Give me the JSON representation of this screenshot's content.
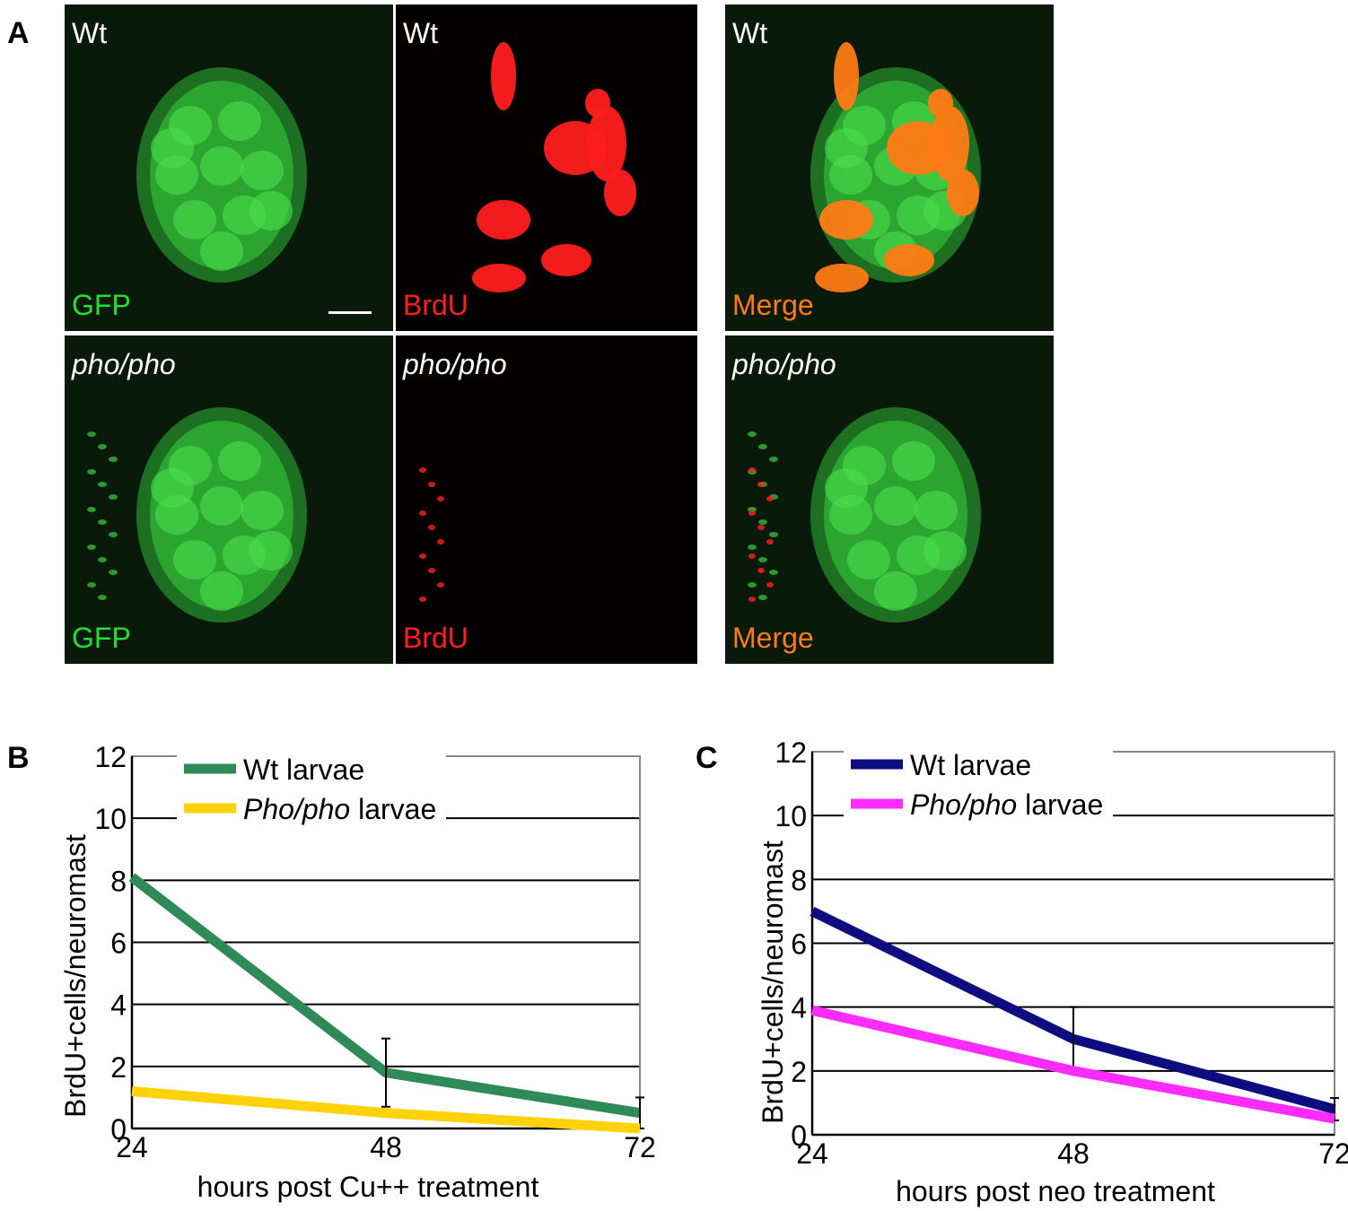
{
  "panel_a": {
    "letter": "A",
    "channel_colors": {
      "GFP": "#22e030",
      "BrdU": "#ff1e1e",
      "Merge": "#ff7a14"
    },
    "rows": [
      {
        "genotype": "Wt",
        "italic": false,
        "images": [
          {
            "label": "GFP",
            "channel": "GFP"
          },
          {
            "label": "BrdU",
            "channel": "BrdU"
          },
          {
            "label": "Merge",
            "channel": "Merge"
          }
        ]
      },
      {
        "genotype": "pho/pho",
        "italic": true,
        "images": [
          {
            "label": "GFP",
            "channel": "GFP"
          },
          {
            "label": "BrdU",
            "channel": "BrdU"
          },
          {
            "label": "Merge",
            "channel": "Merge"
          }
        ]
      }
    ]
  },
  "chart_data": [
    {
      "panel_letter": "B",
      "type": "line",
      "xlabel": "hours post Cu++ treatment",
      "ylabel": "BrdU+cells/neuromast",
      "x": [
        "24",
        "48",
        "72"
      ],
      "ylim": [
        0,
        12
      ],
      "yticks": [
        "0",
        "2",
        "4",
        "6",
        "8",
        "10",
        "12"
      ],
      "grid": true,
      "legend": "top-left",
      "series": [
        {
          "name_prefix": "",
          "name_italic": "",
          "name": "Wt larvae",
          "color": "#2e8b57",
          "values": [
            8.1,
            1.8,
            0.5
          ],
          "errors": [
            0,
            1.1,
            0.5
          ]
        },
        {
          "name_prefix": "",
          "name_italic": "Pho/pho",
          "name": " larvae",
          "color": "#ffd20a",
          "values": [
            1.2,
            0.5,
            0.0
          ],
          "errors": [
            0,
            0,
            0
          ]
        }
      ]
    },
    {
      "panel_letter": "C",
      "type": "line",
      "xlabel": "hours post neo treatment",
      "ylabel": "BrdU+cells/neuromast",
      "x": [
        "24",
        "48",
        "72"
      ],
      "ylim": [
        0,
        12
      ],
      "yticks": [
        "0",
        "2",
        "4",
        "6",
        "8",
        "10",
        "12"
      ],
      "grid": true,
      "legend": "top-left",
      "series": [
        {
          "name_prefix": "",
          "name_italic": "",
          "name": "Wt larvae",
          "color": "#0d0d80",
          "values": [
            7.0,
            3.0,
            0.8
          ],
          "errors": [
            0,
            1.0,
            0.35
          ]
        },
        {
          "name_prefix": "",
          "name_italic": "Pho/pho",
          "name": " larvae",
          "color": "#ff2bff",
          "values": [
            3.9,
            2.0,
            0.5
          ],
          "errors": [
            0,
            0,
            0
          ]
        }
      ]
    }
  ]
}
